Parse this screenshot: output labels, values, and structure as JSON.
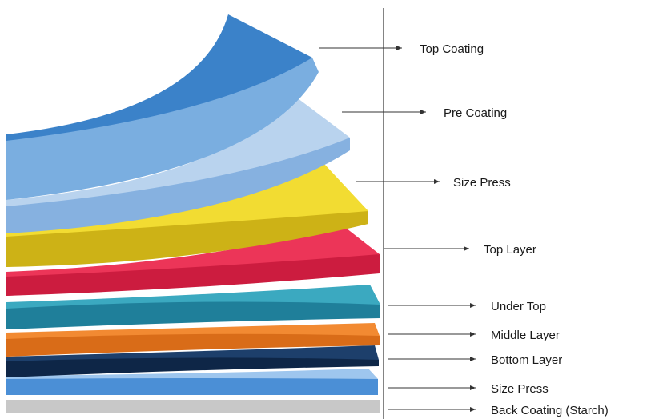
{
  "layers": [
    {
      "label": "Top Coating",
      "face": "#7aaee0",
      "edge": "#3b82c9"
    },
    {
      "label": "Pre Coating",
      "face": "#b9d3ee",
      "edge": "#86b1e0"
    },
    {
      "label": "Size Press",
      "face": "#f2dc32",
      "edge": "#cdb216"
    },
    {
      "label": "Top Layer",
      "face": "#ec3558",
      "edge": "#cc1c3f"
    },
    {
      "label": "Under Top",
      "face": "#3ba9c0",
      "edge": "#1f7f9a"
    },
    {
      "label": "Middle Layer",
      "face": "#f28a32",
      "edge": "#d96c18"
    },
    {
      "label": "Bottom Layer",
      "face": "#1d3f6b",
      "edge": "#0e2647"
    },
    {
      "label": "Size Press",
      "face": "#4b8fd6",
      "edge": "#9ec6ee"
    },
    {
      "label": "Back Coating (Starch)",
      "face": "#c8c8c8",
      "edge": "#a8a8a8"
    }
  ],
  "colors": {
    "axis": "#333333",
    "arrow": "#333333"
  }
}
